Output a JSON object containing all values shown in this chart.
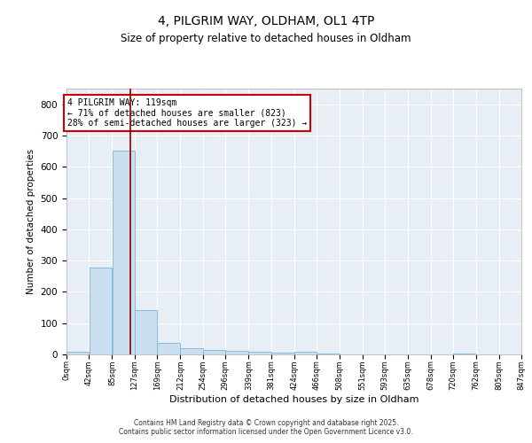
{
  "title_line1": "4, PILGRIM WAY, OLDHAM, OL1 4TP",
  "title_line2": "Size of property relative to detached houses in Oldham",
  "xlabel": "Distribution of detached houses by size in Oldham",
  "ylabel": "Number of detached properties",
  "bar_edges": [
    0,
    42,
    85,
    127,
    169,
    212,
    254,
    296,
    339,
    381,
    424,
    466,
    508,
    551,
    593,
    635,
    678,
    720,
    762,
    805,
    847
  ],
  "bar_values": [
    8,
    278,
    651,
    143,
    38,
    20,
    13,
    10,
    8,
    5,
    8,
    2,
    0,
    0,
    0,
    0,
    0,
    3,
    0,
    0
  ],
  "bar_color": "#c9dff0",
  "bar_edgecolor": "#7fb3d3",
  "ylim": [
    0,
    850
  ],
  "yticks": [
    0,
    100,
    200,
    300,
    400,
    500,
    600,
    700,
    800
  ],
  "vline_x": 119,
  "vline_color": "#8b0000",
  "annotation_text": "4 PILGRIM WAY: 119sqm\n← 71% of detached houses are smaller (823)\n28% of semi-detached houses are larger (323) →",
  "annotation_box_color": "#ffffff",
  "annotation_box_edgecolor": "#cc0000",
  "bg_color": "#e8eef5",
  "grid_color": "#ffffff",
  "footer_line1": "Contains HM Land Registry data © Crown copyright and database right 2025.",
  "footer_line2": "Contains public sector information licensed under the Open Government Licence v3.0.",
  "tick_labels": [
    "0sqm",
    "42sqm",
    "85sqm",
    "127sqm",
    "169sqm",
    "212sqm",
    "254sqm",
    "296sqm",
    "339sqm",
    "381sqm",
    "424sqm",
    "466sqm",
    "508sqm",
    "551sqm",
    "593sqm",
    "635sqm",
    "678sqm",
    "720sqm",
    "762sqm",
    "805sqm",
    "847sqm"
  ]
}
